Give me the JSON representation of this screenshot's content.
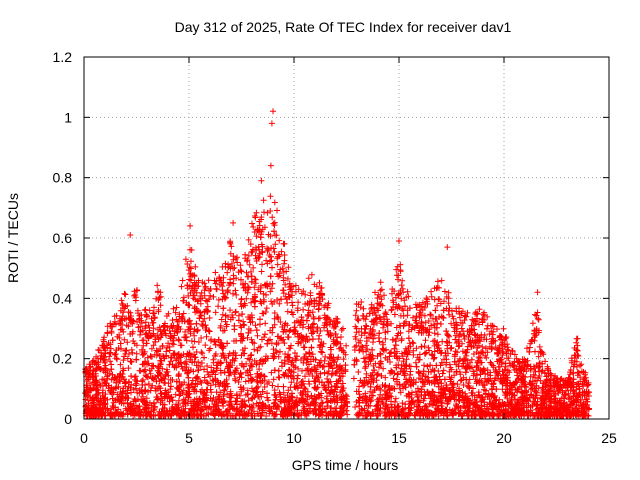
{
  "chart_data": {
    "type": "scatter",
    "title": "Day 312 of 2025, Rate Of TEC Index for receiver dav1",
    "xlabel": "GPS time / hours",
    "ylabel": "ROTI / TECUs",
    "xlim": [
      0,
      25
    ],
    "ylim": [
      0,
      1.2
    ],
    "xticks": [
      0,
      5,
      10,
      15,
      20,
      25
    ],
    "xtick_labels": [
      "0",
      "5",
      "10",
      "15",
      "20",
      "25"
    ],
    "yticks": [
      0,
      0.2,
      0.4,
      0.6,
      0.8,
      1,
      1.2
    ],
    "ytick_labels": [
      "0",
      "0.2",
      "0.4",
      "0.6",
      "0.8",
      "1",
      "1.2"
    ],
    "grid": true,
    "marker": "+",
    "color": "#ff0000",
    "series": [
      {
        "name": "ROTI",
        "note": "approximate upper envelope (hour, ROTI) of a dense point cloud extending down to ~0.01; individual points are procedurally filled below this envelope",
        "envelope_x": [
          0,
          0.5,
          1,
          1.5,
          2,
          2.5,
          3,
          3.5,
          4,
          4.5,
          5,
          5.5,
          6,
          6.5,
          7,
          7.5,
          8,
          8.5,
          9,
          9.5,
          10,
          10.5,
          11,
          11.5,
          12,
          12.5,
          12.6,
          13,
          13.5,
          14,
          14.5,
          15,
          15.5,
          16,
          16.5,
          17,
          17.5,
          18,
          18.5,
          19,
          19.5,
          20,
          20.5,
          21,
          21.5,
          22,
          22.5,
          23,
          23.5,
          24
        ],
        "envelope_y": [
          0.17,
          0.2,
          0.3,
          0.35,
          0.43,
          0.45,
          0.35,
          0.45,
          0.35,
          0.38,
          0.6,
          0.45,
          0.48,
          0.5,
          0.6,
          0.5,
          0.65,
          0.75,
          0.75,
          0.6,
          0.45,
          0.45,
          0.5,
          0.4,
          0.35,
          0.28,
          0.0,
          0.42,
          0.35,
          0.48,
          0.38,
          0.55,
          0.4,
          0.4,
          0.42,
          0.48,
          0.4,
          0.38,
          0.35,
          0.38,
          0.32,
          0.3,
          0.22,
          0.2,
          0.4,
          0.18,
          0.14,
          0.14,
          0.28,
          0.12
        ]
      }
    ],
    "highlights": [
      {
        "x": 2.2,
        "y": 0.61
      },
      {
        "x": 5.05,
        "y": 0.64
      },
      {
        "x": 7.1,
        "y": 0.65
      },
      {
        "x": 8.45,
        "y": 0.79
      },
      {
        "x": 8.9,
        "y": 0.84
      },
      {
        "x": 9.0,
        "y": 1.02
      },
      {
        "x": 8.95,
        "y": 0.98
      },
      {
        "x": 15.0,
        "y": 0.59
      },
      {
        "x": 17.3,
        "y": 0.57
      },
      {
        "x": 21.6,
        "y": 0.42
      }
    ]
  }
}
